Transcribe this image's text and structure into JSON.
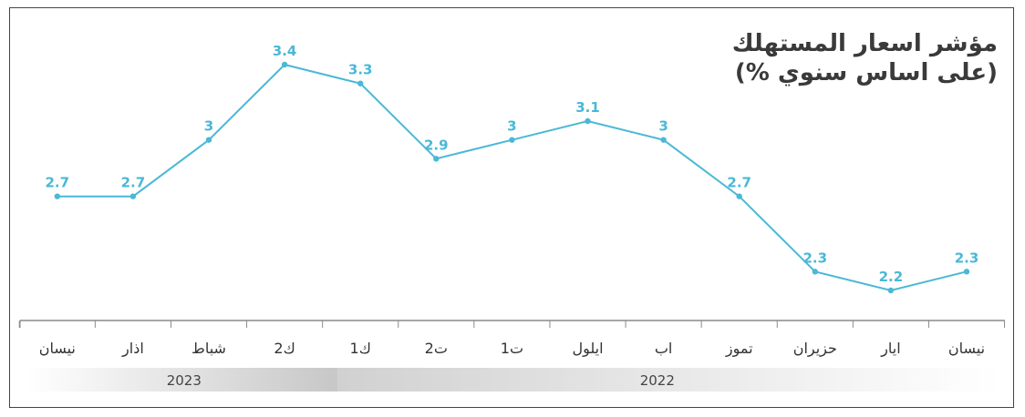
{
  "title": {
    "line1": "مؤشر اسعار المستهلك",
    "line2": "(على اساس سنوي %)"
  },
  "colors": {
    "line": "#4ab8d6",
    "point_label": "#4ab8d6",
    "axis": "#8a8a8a",
    "year_band": "#cfcfcf"
  },
  "chart_data": {
    "type": "line",
    "title": "مؤشر اسعار المستهلك (على اساس سنوي %)",
    "xlabel": "",
    "ylabel": "",
    "direction": "right-to-left",
    "categories": [
      "نيسان",
      "ايار",
      "حزيران",
      "تموز",
      "اب",
      "ايلول",
      "ت1",
      "ت2",
      "ك1",
      "ك2",
      "شباط",
      "اذار",
      "نيسان"
    ],
    "labels": [
      "2.3",
      "2.2",
      "2.3",
      "2.7",
      "3",
      "3.1",
      "3",
      "2.9",
      "3.3",
      "3.4",
      "3",
      "2.7",
      "2.7"
    ],
    "series": [
      {
        "values": [
          2.3,
          2.2,
          2.3,
          2.7,
          3.0,
          3.1,
          3.0,
          2.9,
          3.3,
          3.4,
          3.0,
          2.7,
          2.7
        ]
      }
    ],
    "ylim": [
      1.8,
      3.5
    ],
    "grid": false,
    "legend": "none",
    "year_groups": [
      {
        "label": "2022",
        "first_index": 0,
        "last_index": 8
      },
      {
        "label": "2023",
        "first_index": 9,
        "last_index": 12
      }
    ]
  }
}
